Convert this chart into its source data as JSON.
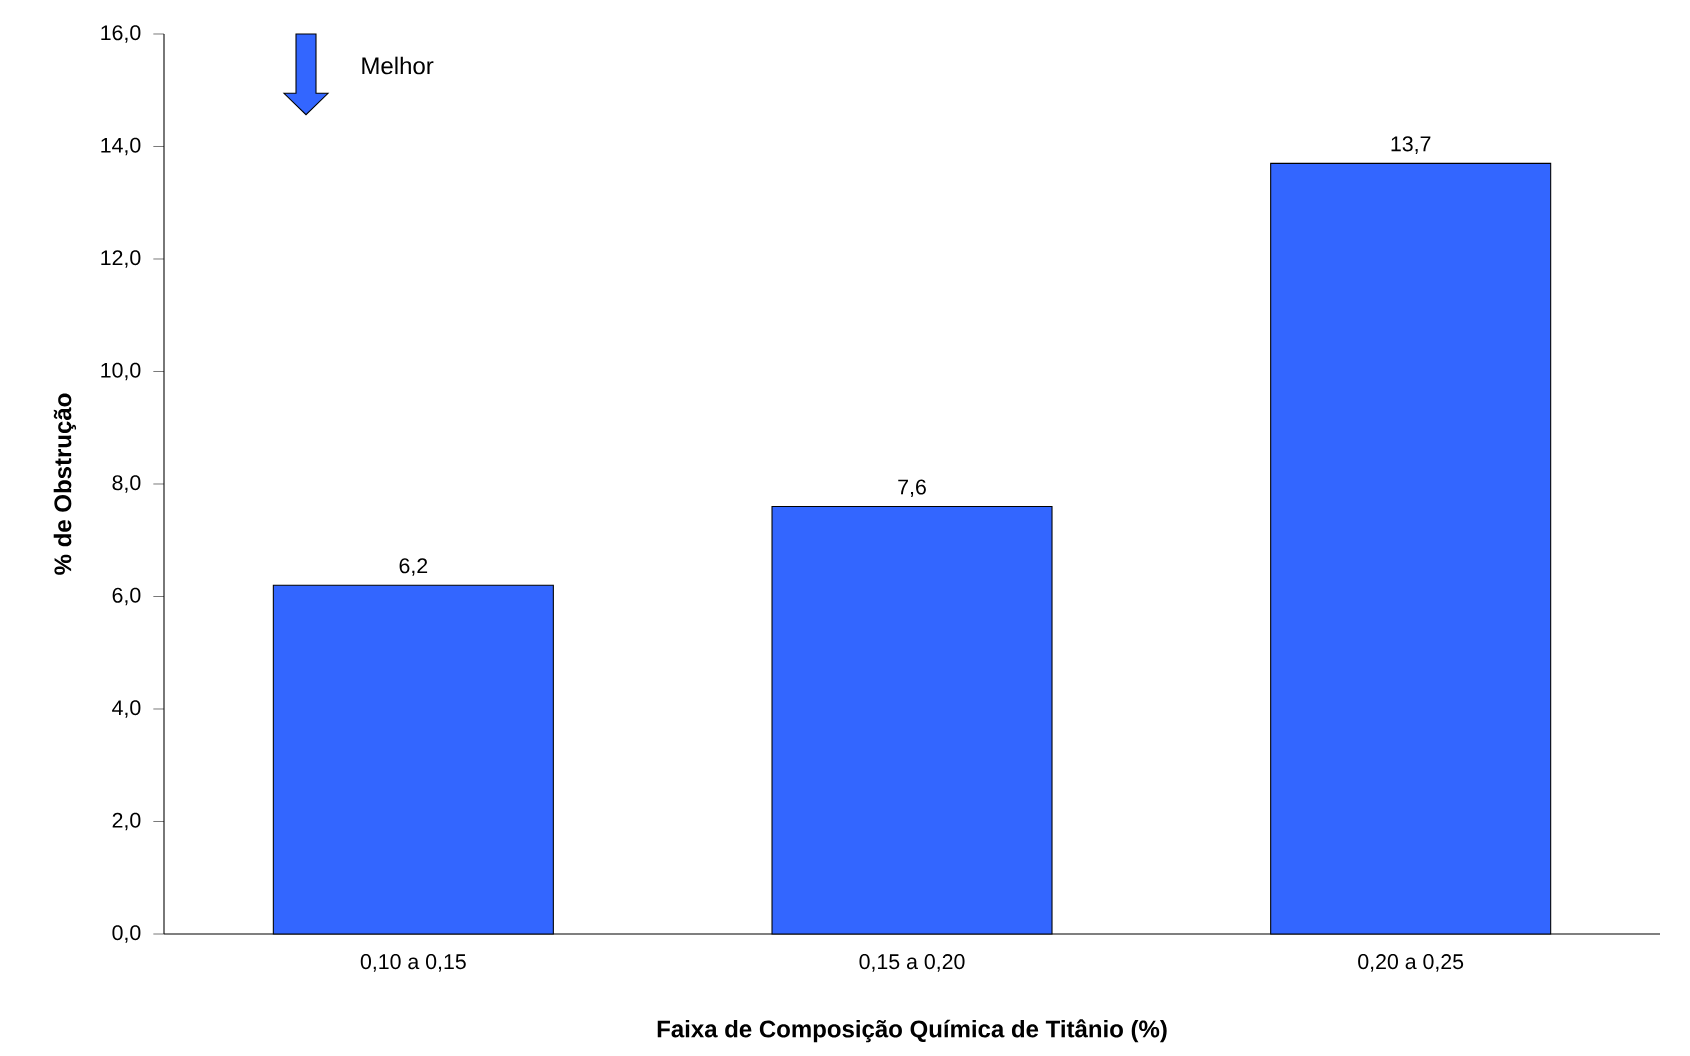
{
  "chart_data": {
    "type": "bar",
    "xlabel": "Faixa de Composição Química de Titânio (%)",
    "ylabel": "% de Obstrução",
    "categories": [
      "0,10 a 0,15",
      "0,15 a 0,20",
      "0,20 a 0,25"
    ],
    "values": [
      6.2,
      7.6,
      13.7
    ],
    "color": "#3366ff",
    "value_labels": [
      "6,2",
      "7,6",
      "13,7"
    ],
    "ylim": [
      0,
      16
    ],
    "yticks": [
      {
        "value": 0,
        "label": "0,0"
      },
      {
        "value": 2,
        "label": "2,0"
      },
      {
        "value": 4,
        "label": "4,0"
      },
      {
        "value": 6,
        "label": "6,0"
      },
      {
        "value": 8,
        "label": "8,0"
      },
      {
        "value": 10,
        "label": "10,0"
      },
      {
        "value": 12,
        "label": "12,0"
      },
      {
        "value": 14,
        "label": "14,0"
      },
      {
        "value": 16,
        "label": "16,0"
      }
    ],
    "annotations": [
      "Melhor"
    ],
    "grid": false
  }
}
